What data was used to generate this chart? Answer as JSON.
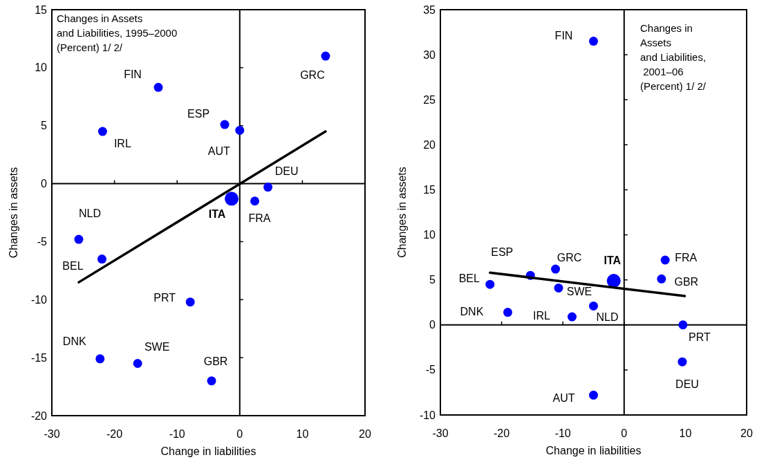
{
  "chart_data": [
    {
      "type": "scatter",
      "title": "Changes in Assets\nand Liabilities, 1995–2000\n(Percent) 1/ 2/",
      "xlabel": "Change in liabilities",
      "ylabel": "Changes in assets",
      "xlim": [
        -30,
        20
      ],
      "xticks": [
        -30,
        -20,
        -10,
        0,
        10,
        20
      ],
      "ylim": [
        -20,
        15
      ],
      "yticks": [
        -20,
        -15,
        -10,
        -5,
        0,
        5,
        10,
        15
      ],
      "legend": false,
      "marker": "circle",
      "series": [
        {
          "type": "scatter",
          "color": "#0000ff",
          "x": [
            13.7,
            -13.0,
            -21.9,
            -2.4,
            0.0,
            4.5,
            2.4,
            -25.7,
            -22.0,
            -7.9,
            -22.3,
            -16.3,
            -4.5
          ],
          "values": [
            11.0,
            8.3,
            4.5,
            5.1,
            4.6,
            -0.3,
            -1.5,
            -4.8,
            -6.5,
            -10.2,
            -15.1,
            -15.5,
            -17.0
          ]
        },
        {
          "type": "scatter",
          "color": "#0000ff",
          "x": [
            -1.3
          ],
          "values": [
            -1.3
          ]
        },
        {
          "type": "line",
          "color": "#000000",
          "marker": "none",
          "x": [
            -25.7,
            13.7
          ],
          "values": [
            -8.5,
            4.5
          ]
        }
      ],
      "annotations": [
        {
          "text": "GRC",
          "x": 13.7,
          "y": 11.0
        },
        {
          "text": "FIN",
          "x": -13.0,
          "y": 8.3
        },
        {
          "text": "IRL",
          "x": -21.9,
          "y": 4.5
        },
        {
          "text": "ESP",
          "x": -2.4,
          "y": 5.1
        },
        {
          "text": "AUT",
          "x": 0.0,
          "y": 4.6
        },
        {
          "text": "DEU",
          "x": 4.5,
          "y": -0.3
        },
        {
          "text": "FRA",
          "x": 2.4,
          "y": -1.5
        },
        {
          "text": "ITA",
          "x": -1.3,
          "y": -1.3
        },
        {
          "text": "NLD",
          "x": -25.7,
          "y": -4.8
        },
        {
          "text": "BEL",
          "x": -22.0,
          "y": -6.5
        },
        {
          "text": "PRT",
          "x": -7.9,
          "y": -10.2
        },
        {
          "text": "DNK",
          "x": -22.3,
          "y": -15.1
        },
        {
          "text": "SWE",
          "x": -16.3,
          "y": -15.5
        },
        {
          "text": "GBR",
          "x": -4.5,
          "y": -17.0
        }
      ]
    },
    {
      "type": "scatter",
      "title": "Changes in\nAssets\nand Liabilities,\n 2001–06\n(Percent) 1/ 2/",
      "xlabel": "Change in liabilities",
      "ylabel": "Changes in assets",
      "xlim": [
        -30,
        20
      ],
      "xticks": [
        -30,
        -20,
        -10,
        0,
        10,
        20
      ],
      "ylim": [
        -10,
        35
      ],
      "yticks": [
        -10,
        -5,
        0,
        5,
        10,
        15,
        20,
        25,
        30,
        35
      ],
      "legend": false,
      "marker": "circle",
      "series": [
        {
          "type": "scatter",
          "color": "#0000ff",
          "x": [
            -5.0,
            6.7,
            6.1,
            -11.2,
            -15.3,
            -21.9,
            -10.7,
            -5.0,
            -19.0,
            -8.5,
            9.6,
            9.5,
            -5.0
          ],
          "values": [
            31.5,
            7.2,
            5.1,
            6.2,
            5.5,
            4.5,
            4.1,
            2.1,
            1.4,
            0.9,
            0.0,
            -4.1,
            -7.8
          ]
        },
        {
          "type": "scatter",
          "color": "#0000ff",
          "x": [
            -1.7
          ],
          "values": [
            4.9
          ]
        },
        {
          "type": "line",
          "color": "#000000",
          "marker": "none",
          "x": [
            -21.9,
            9.9
          ],
          "values": [
            5.8,
            3.2
          ]
        }
      ],
      "annotations": [
        {
          "text": "FIN",
          "x": -5.0,
          "y": 31.5
        },
        {
          "text": "FRA",
          "x": 6.7,
          "y": 7.2
        },
        {
          "text": "ITA",
          "x": -1.7,
          "y": 4.9
        },
        {
          "text": "GBR",
          "x": 6.1,
          "y": 5.1
        },
        {
          "text": "GRC",
          "x": -11.2,
          "y": 6.2
        },
        {
          "text": "ESP",
          "x": -15.3,
          "y": 5.5
        },
        {
          "text": "BEL",
          "x": -21.9,
          "y": 4.5
        },
        {
          "text": "SWE",
          "x": -10.7,
          "y": 4.1
        },
        {
          "text": "NLD",
          "x": -5.0,
          "y": 2.1
        },
        {
          "text": "DNK",
          "x": -19.0,
          "y": 1.4
        },
        {
          "text": "IRL",
          "x": -8.5,
          "y": 0.9
        },
        {
          "text": "PRT",
          "x": 9.6,
          "y": 0.0
        },
        {
          "text": "DEU",
          "x": 9.5,
          "y": -4.1
        },
        {
          "text": "AUT",
          "x": -5.0,
          "y": -7.8
        }
      ]
    }
  ]
}
